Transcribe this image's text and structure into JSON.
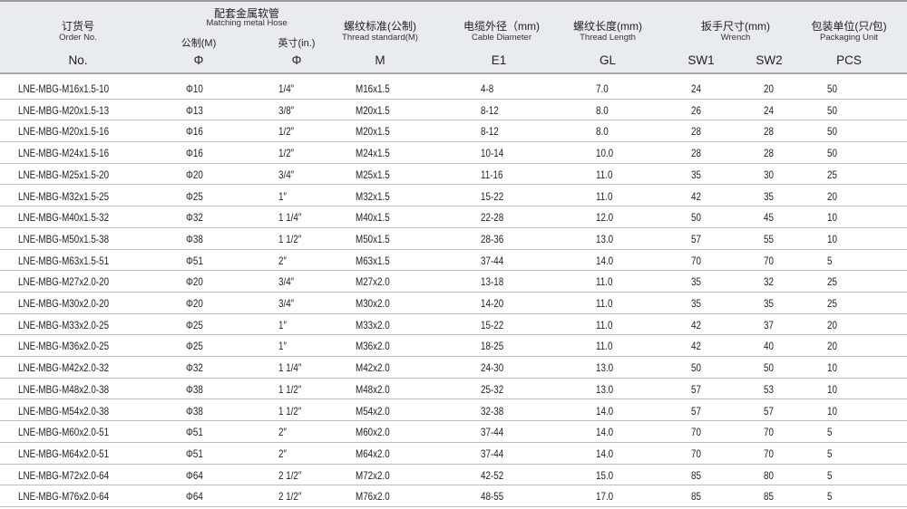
{
  "header": {
    "order": {
      "cn": "订货号",
      "en": "Order No.",
      "sym": "No."
    },
    "hose": {
      "cn": "配套金属软管",
      "en": "Matching metal Hose",
      "metric": "公制(M)",
      "inch": "英寸(in.)",
      "sym_metric": "Φ",
      "sym_inch": "Φ"
    },
    "thread": {
      "cn": "螺纹标准(公制)",
      "en": "Thread standard(M)",
      "sym": "M"
    },
    "cable": {
      "cn": "电缆外径（mm)",
      "en": "Cable Diameter",
      "sym": "E1"
    },
    "length": {
      "cn": "螺纹长度(mm)",
      "en": "Thread  Length",
      "sym": "GL"
    },
    "wrench": {
      "cn": "扳手尺寸(mm)",
      "en": "Wrench",
      "sym1": "SW1",
      "sym2": "SW2"
    },
    "pack": {
      "cn": "包装单位(只/包)",
      "en": "Packaging Unit",
      "sym": "PCS"
    }
  },
  "rows": [
    [
      "LNE-MBG-M16x1.5-10",
      "Φ10",
      "1/4″",
      "M16x1.5",
      "4-8",
      "7.0",
      "24",
      "20",
      "50"
    ],
    [
      "LNE-MBG-M20x1.5-13",
      "Φ13",
      "3/8″",
      "M20x1.5",
      "8-12",
      "8.0",
      "26",
      "24",
      "50"
    ],
    [
      "LNE-MBG-M20x1.5-16",
      "Φ16",
      "1/2″",
      "M20x1.5",
      "8-12",
      "8.0",
      "28",
      "28",
      "50"
    ],
    [
      "LNE-MBG-M24x1.5-16",
      "Φ16",
      "1/2″",
      "M24x1.5",
      "10-14",
      "10.0",
      "28",
      "28",
      "50"
    ],
    [
      "LNE-MBG-M25x1.5-20",
      "Φ20",
      "3/4″",
      "M25x1.5",
      "11-16",
      "11.0",
      "35",
      "30",
      "25"
    ],
    [
      "LNE-MBG-M32x1.5-25",
      "Φ25",
      "1″",
      "M32x1.5",
      "15-22",
      "11.0",
      "42",
      "35",
      "20"
    ],
    [
      "LNE-MBG-M40x1.5-32",
      "Φ32",
      "1 1/4″",
      "M40x1.5",
      "22-28",
      "12.0",
      "50",
      "45",
      "10"
    ],
    [
      "LNE-MBG-M50x1.5-38",
      "Φ38",
      "1 1/2″",
      "M50x1.5",
      "28-36",
      "13.0",
      "57",
      "55",
      "10"
    ],
    [
      "LNE-MBG-M63x1.5-51",
      "Φ51",
      "2″",
      "M63x1.5",
      "37-44",
      "14.0",
      "70",
      "70",
      "5"
    ],
    [
      "LNE-MBG-M27x2.0-20",
      "Φ20",
      "3/4″",
      "M27x2.0",
      "13-18",
      "11.0",
      "35",
      "32",
      "25"
    ],
    [
      "LNE-MBG-M30x2.0-20",
      "Φ20",
      "3/4″",
      "M30x2.0",
      "14-20",
      "11.0",
      "35",
      "35",
      "25"
    ],
    [
      "LNE-MBG-M33x2.0-25",
      "Φ25",
      "1″",
      "M33x2.0",
      "15-22",
      "11.0",
      "42",
      "37",
      "20"
    ],
    [
      "LNE-MBG-M36x2.0-25",
      "Φ25",
      "1″",
      "M36x2.0",
      "18-25",
      "11.0",
      "42",
      "40",
      "20"
    ],
    [
      "LNE-MBG-M42x2.0-32",
      "Φ32",
      "1 1/4″",
      "M42x2.0",
      "24-30",
      "13.0",
      "50",
      "50",
      "10"
    ],
    [
      "LNE-MBG-M48x2.0-38",
      "Φ38",
      "1 1/2″",
      "M48x2.0",
      "25-32",
      "13.0",
      "57",
      "53",
      "10"
    ],
    [
      "LNE-MBG-M54x2.0-38",
      "Φ38",
      "1 1/2″",
      "M54x2.0",
      "32-38",
      "14.0",
      "57",
      "57",
      "10"
    ],
    [
      "LNE-MBG-M60x2.0-51",
      "Φ51",
      "2″",
      "M60x2.0",
      "37-44",
      "14.0",
      "70",
      "70",
      "5"
    ],
    [
      "LNE-MBG-M64x2.0-51",
      "Φ51",
      "2″",
      "M64x2.0",
      "37-44",
      "14.0",
      "70",
      "70",
      "5"
    ],
    [
      "LNE-MBG-M72x2.0-64",
      "Φ64",
      "2 1/2″",
      "M72x2.0",
      "42-52",
      "15.0",
      "85",
      "80",
      "5"
    ],
    [
      "LNE-MBG-M76x2.0-64",
      "Φ64",
      "2 1/2″",
      "M76x2.0",
      "48-55",
      "17.0",
      "85",
      "85",
      "5"
    ]
  ]
}
